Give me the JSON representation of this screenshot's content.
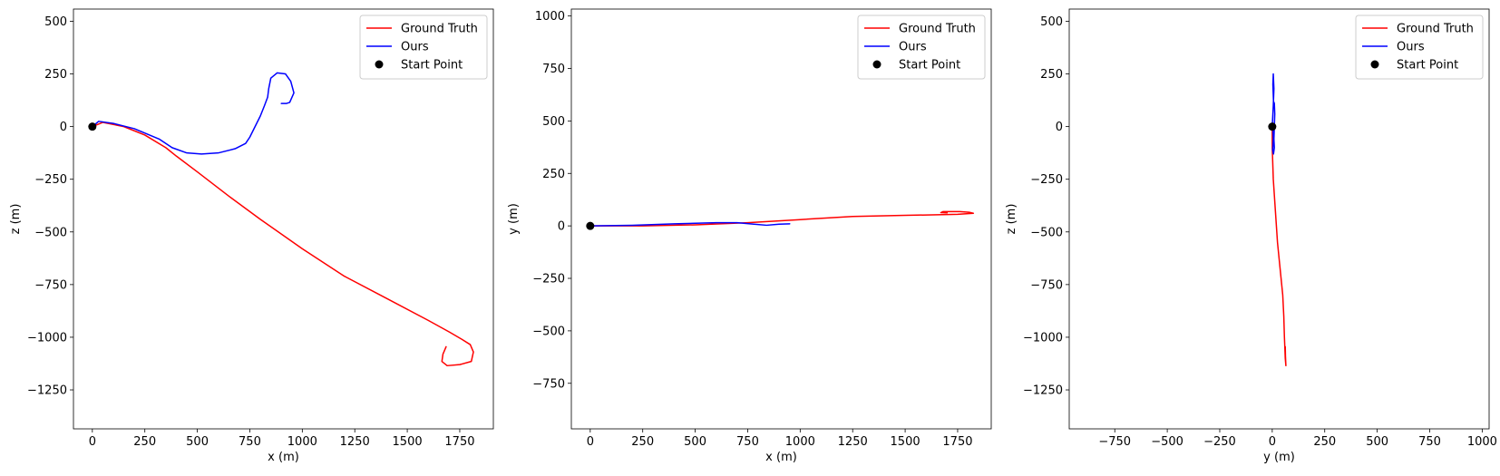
{
  "chart_data": [
    {
      "type": "line",
      "xlabel": "x (m)",
      "ylabel": "z (m)",
      "xlim": [
        -90,
        1910
      ],
      "ylim": [
        -1435,
        558
      ],
      "xticks": [
        0,
        250,
        500,
        750,
        1000,
        1250,
        1500,
        1750
      ],
      "xtick_labels": [
        "0",
        "250",
        "500",
        "750",
        "1000",
        "1250",
        "1500",
        "1750"
      ],
      "yticks": [
        500,
        250,
        0,
        -250,
        -500,
        -750,
        -1000,
        -1250
      ],
      "ytick_labels": [
        "500",
        "250",
        "0",
        "−250",
        "−500",
        "−750",
        "−1000",
        "−1250"
      ],
      "grid": false,
      "legend_position": "top-right",
      "series": [
        {
          "name": "Ground Truth",
          "color": "#ff0000",
          "points": [
            [
              0,
              0
            ],
            [
              50,
              20
            ],
            [
              150,
              0
            ],
            [
              250,
              -40
            ],
            [
              350,
              -100
            ],
            [
              400,
              -140
            ],
            [
              500,
              -215
            ],
            [
              650,
              -330
            ],
            [
              800,
              -440
            ],
            [
              1000,
              -580
            ],
            [
              1200,
              -710
            ],
            [
              1400,
              -815
            ],
            [
              1600,
              -920
            ],
            [
              1700,
              -975
            ],
            [
              1760,
              -1010
            ],
            [
              1800,
              -1035
            ],
            [
              1815,
              -1070
            ],
            [
              1805,
              -1115
            ],
            [
              1750,
              -1130
            ],
            [
              1690,
              -1135
            ],
            [
              1665,
              -1115
            ],
            [
              1670,
              -1080
            ],
            [
              1685,
              -1045
            ]
          ]
        },
        {
          "name": "Ours",
          "color": "#0000ff",
          "points": [
            [
              0,
              0
            ],
            [
              30,
              25
            ],
            [
              100,
              15
            ],
            [
              200,
              -10
            ],
            [
              320,
              -60
            ],
            [
              380,
              -100
            ],
            [
              450,
              -125
            ],
            [
              520,
              -130
            ],
            [
              600,
              -125
            ],
            [
              680,
              -105
            ],
            [
              730,
              -80
            ],
            [
              750,
              -50
            ],
            [
              800,
              50
            ],
            [
              820,
              100
            ],
            [
              835,
              140
            ],
            [
              840,
              180
            ],
            [
              850,
              230
            ],
            [
              880,
              255
            ],
            [
              920,
              250
            ],
            [
              945,
              215
            ],
            [
              960,
              160
            ],
            [
              940,
              115
            ],
            [
              925,
              110
            ],
            [
              900,
              110
            ]
          ]
        },
        {
          "name": "Start Point",
          "color": "#000000",
          "marker": "o",
          "points": [
            [
              0,
              0
            ]
          ]
        }
      ]
    },
    {
      "type": "line",
      "xlabel": "x (m)",
      "ylabel": "y (m)",
      "xlim": [
        -90,
        1910
      ],
      "ylim": [
        -967,
        1033
      ],
      "xticks": [
        0,
        250,
        500,
        750,
        1000,
        1250,
        1500,
        1750
      ],
      "xtick_labels": [
        "0",
        "250",
        "500",
        "750",
        "1000",
        "1250",
        "1500",
        "1750"
      ],
      "yticks": [
        1000,
        750,
        500,
        250,
        0,
        -250,
        -500,
        -750
      ],
      "ytick_labels": [
        "1000",
        "750",
        "500",
        "250",
        "0",
        "−250",
        "−500",
        "−750"
      ],
      "grid": false,
      "legend_position": "top-right",
      "series": [
        {
          "name": "Ground Truth",
          "color": "#ff0000",
          "points": [
            [
              0,
              0
            ],
            [
              250,
              0
            ],
            [
              500,
              5
            ],
            [
              750,
              15
            ],
            [
              1000,
              30
            ],
            [
              1250,
              45
            ],
            [
              1500,
              50
            ],
            [
              1750,
              55
            ],
            [
              1825,
              60
            ],
            [
              1805,
              65
            ],
            [
              1760,
              68
            ],
            [
              1680,
              68
            ],
            [
              1670,
              63
            ],
            [
              1700,
              62
            ]
          ]
        },
        {
          "name": "Ours",
          "color": "#0000ff",
          "points": [
            [
              0,
              0
            ],
            [
              200,
              3
            ],
            [
              400,
              10
            ],
            [
              600,
              15
            ],
            [
              700,
              15
            ],
            [
              780,
              8
            ],
            [
              840,
              3
            ],
            [
              900,
              8
            ],
            [
              950,
              10
            ]
          ]
        },
        {
          "name": "Start Point",
          "color": "#000000",
          "marker": "o",
          "points": [
            [
              0,
              0
            ]
          ]
        }
      ]
    },
    {
      "type": "line",
      "xlabel": "y (m)",
      "ylabel": "z (m)",
      "xlim": [
        -967,
        1033
      ],
      "ylim": [
        -1435,
        558
      ],
      "xticks": [
        -750,
        -500,
        -250,
        0,
        250,
        500,
        750,
        1000
      ],
      "xtick_labels": [
        "−750",
        "−500",
        "−250",
        "0",
        "250",
        "500",
        "750",
        "1000"
      ],
      "yticks": [
        500,
        250,
        0,
        -250,
        -500,
        -750,
        -1000,
        -1250
      ],
      "ytick_labels": [
        "500",
        "250",
        "0",
        "−250",
        "−500",
        "−750",
        "−1000",
        "−1250"
      ],
      "grid": false,
      "legend_position": "top-right",
      "series": [
        {
          "name": "Ground Truth",
          "color": "#ff0000",
          "points": [
            [
              0,
              0
            ],
            [
              0,
              -100
            ],
            [
              5,
              -250
            ],
            [
              15,
              -400
            ],
            [
              25,
              -550
            ],
            [
              40,
              -700
            ],
            [
              50,
              -800
            ],
            [
              55,
              -900
            ],
            [
              58,
              -1000
            ],
            [
              60,
              -1050
            ],
            [
              62,
              -1100
            ],
            [
              65,
              -1135
            ],
            [
              63,
              -1090
            ],
            [
              62,
              -1045
            ]
          ]
        },
        {
          "name": "Ours",
          "color": "#0000ff",
          "points": [
            [
              0,
              0
            ],
            [
              5,
              100
            ],
            [
              8,
              180
            ],
            [
              5,
              250
            ],
            [
              3,
              200
            ],
            [
              6,
              120
            ],
            [
              10,
              110
            ],
            [
              12,
              60
            ],
            [
              10,
              0
            ],
            [
              8,
              -60
            ],
            [
              10,
              -100
            ],
            [
              6,
              -130
            ],
            [
              2,
              -110
            ],
            [
              5,
              -60
            ],
            [
              3,
              0
            ]
          ]
        },
        {
          "name": "Start Point",
          "color": "#000000",
          "marker": "o",
          "points": [
            [
              0,
              0
            ]
          ]
        }
      ]
    }
  ]
}
